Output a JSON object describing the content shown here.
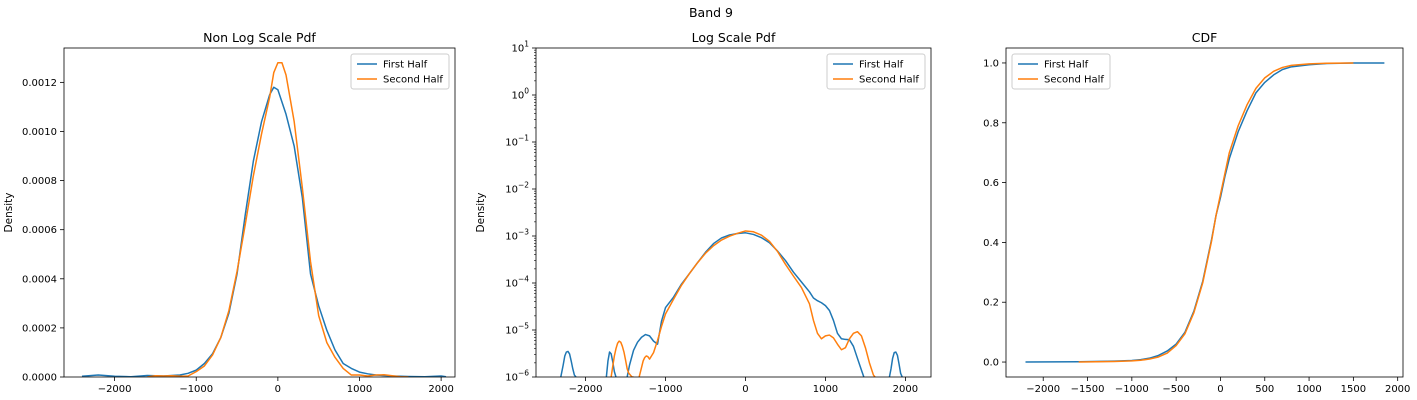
{
  "suptitle": "Band 9",
  "colors": {
    "first": "#1f77b4",
    "second": "#ff7f0e"
  },
  "legend": [
    "First Half",
    "Second Half"
  ],
  "chart_data": [
    {
      "type": "line",
      "title": "Non Log Scale Pdf",
      "xlabel": "",
      "ylabel": "Density",
      "xlim": [
        -2620,
        2170
      ],
      "ylim": [
        0,
        0.00134
      ],
      "xticks": [
        -2000,
        -1000,
        0,
        1000,
        2000
      ],
      "xtick_labels": [
        "−2000",
        "−1000",
        "0",
        "1000",
        "2000"
      ],
      "yticks": [
        0,
        0.0002,
        0.0004,
        0.0006,
        0.0008,
        0.001,
        0.0012
      ],
      "ytick_labels": [
        "0.0000",
        "0.0002",
        "0.0004",
        "0.0006",
        "0.0008",
        "0.0010",
        "0.0012"
      ],
      "legend_loc": "upper right",
      "series": [
        {
          "name": "First Half",
          "color": "#1f77b4",
          "x": [
            -2400,
            -2200,
            -2000,
            -1800,
            -1600,
            -1400,
            -1200,
            -1100,
            -1000,
            -900,
            -800,
            -700,
            -600,
            -500,
            -400,
            -300,
            -200,
            -100,
            -50,
            0,
            50,
            100,
            200,
            300,
            400,
            500,
            600,
            700,
            800,
            900,
            1000,
            1100,
            1200,
            1400,
            1600,
            1800,
            2000,
            2060
          ],
          "y": [
            3e-06,
            8e-06,
            3e-06,
            1e-06,
            6e-06,
            4e-06,
            8e-06,
            1.5e-05,
            2.8e-05,
            5.5e-05,
            9.5e-05,
            0.00016,
            0.00026,
            0.00042,
            0.00066,
            0.00088,
            0.00104,
            0.00115,
            0.00118,
            0.00117,
            0.00112,
            0.00107,
            0.00094,
            0.00073,
            0.00042,
            0.00029,
            0.00019,
            0.00011,
            5.5e-05,
            3.5e-05,
            2e-05,
            1.3e-05,
            8e-06,
            4e-06,
            2e-06,
            1e-06,
            4e-06,
            1e-06
          ]
        },
        {
          "name": "Second Half",
          "color": "#ff7f0e",
          "x": [
            -1600,
            -1500,
            -1400,
            -1300,
            -1200,
            -1100,
            -1000,
            -900,
            -800,
            -700,
            -600,
            -500,
            -400,
            -300,
            -200,
            -100,
            -50,
            0,
            50,
            100,
            200,
            300,
            400,
            500,
            600,
            700,
            800,
            900,
            1000,
            1100,
            1200,
            1300,
            1400,
            1500,
            1600
          ],
          "y": [
            0,
            5e-06,
            4e-06,
            5e-06,
            3e-06,
            4e-06,
            2.2e-05,
            4.5e-05,
            9e-05,
            0.00016,
            0.00027,
            0.00043,
            0.00062,
            0.00082,
            0.00099,
            0.00114,
            0.00124,
            0.00128,
            0.00128,
            0.00123,
            0.00104,
            0.00077,
            0.00047,
            0.00025,
            0.00014,
            8e-05,
            3.5e-05,
            8e-06,
            8e-06,
            4e-06,
            8e-06,
            9e-06,
            5e-06,
            1e-06,
            0
          ]
        }
      ]
    },
    {
      "type": "line",
      "title": "Log Scale Pdf",
      "xlabel": "",
      "ylabel": "Density",
      "yscale": "log",
      "xlim": [
        -2620,
        2320
      ],
      "ylim": [
        1e-06,
        10
      ],
      "xticks": [
        -2000,
        -1000,
        0,
        1000,
        2000
      ],
      "xtick_labels": [
        "−2000",
        "−1000",
        "0",
        "1000",
        "2000"
      ],
      "yticks": [
        1e-06,
        1e-05,
        0.0001,
        0.001,
        0.01,
        0.1,
        1,
        10
      ],
      "ytick_labels": [
        [
          "10",
          "−6"
        ],
        [
          "10",
          "−5"
        ],
        [
          "10",
          "−4"
        ],
        [
          "10",
          "−3"
        ],
        [
          "10",
          "−2"
        ],
        [
          "10",
          "−1"
        ],
        [
          "10",
          "0"
        ],
        [
          "10",
          "1"
        ]
      ],
      "legend_loc": "upper right",
      "series": [
        {
          "name": "First Half",
          "color": "#1f77b4",
          "segments": [
            {
              "x": [
                -2310,
                -2280,
                -2260,
                -2240,
                -2220,
                -2200,
                -2180,
                -2160,
                -2140,
                -2120
              ],
              "y": [
                1e-06,
                1.8e-06,
                2.8e-06,
                3.4e-06,
                3.5e-06,
                3.1e-06,
                2.2e-06,
                1.5e-06,
                1.1e-06,
                1e-06
              ]
            },
            {
              "x": [
                -1740,
                -1720,
                -1700,
                -1680,
                -1660,
                -1640,
                -1620
              ],
              "y": [
                1e-06,
                2.2e-06,
                3.4e-06,
                3.1e-06,
                2.1e-06,
                1.3e-06,
                1e-06
              ]
            },
            {
              "x": [
                -1480,
                -1450,
                -1400,
                -1350,
                -1300,
                -1250,
                -1200,
                -1150,
                -1100,
                -1050,
                -1000,
                -900,
                -800,
                -700,
                -600,
                -500,
                -400,
                -300,
                -200,
                -100,
                0,
                100,
                200,
                300,
                400,
                500,
                600,
                700,
                800,
                850,
                900,
                950,
                1000,
                1050,
                1100,
                1150,
                1200,
                1250,
                1300,
                1350,
                1400,
                1450,
                1480
              ],
              "y": [
                1e-06,
                1.8e-06,
                3.7e-06,
                5.5e-06,
                7e-06,
                8e-06,
                7.5e-06,
                5.8e-06,
                5e-06,
                1.55e-05,
                3e-05,
                5e-05,
                9.5e-05,
                0.00016,
                0.00027,
                0.00045,
                0.00069,
                0.00091,
                0.00105,
                0.00113,
                0.00117,
                0.00108,
                0.00092,
                0.00072,
                0.00048,
                0.0003,
                0.00017,
                0.000105,
                6.5e-05,
                4.8e-05,
                4.2e-05,
                3.8e-05,
                3.3e-05,
                2.6e-05,
                1.6e-05,
                8.5e-06,
                6.5e-06,
                6.3e-06,
                6.2e-06,
                4.5e-06,
                2.5e-06,
                1.4e-06,
                1e-06
              ]
            },
            {
              "x": [
                1800,
                1820,
                1840,
                1860,
                1880,
                1900,
                1920,
                1940,
                1960
              ],
              "y": [
                1e-06,
                1.5e-06,
                2.5e-06,
                3.3e-06,
                3.4e-06,
                2.9e-06,
                1.9e-06,
                1.2e-06,
                1e-06
              ]
            }
          ]
        },
        {
          "name": "Second Half",
          "color": "#ff7f0e",
          "segments": [
            {
              "x": [
                -1680,
                -1660,
                -1640,
                -1620,
                -1600,
                -1580,
                -1560,
                -1540,
                -1520,
                -1500,
                -1480,
                -1460,
                -1440,
                -1420,
                -1400
              ],
              "y": [
                1e-06,
                1.7e-06,
                2.8e-06,
                4e-06,
                5.2e-06,
                5.8e-06,
                5.5e-06,
                4.5e-06,
                3.4e-06,
                2.3e-06,
                1.5e-06,
                1.2e-06,
                1.1e-06,
                1e-06,
                1e-06
              ]
            },
            {
              "x": [
                -1330,
                -1300,
                -1280,
                -1260,
                -1240,
                -1220,
                -1200,
                -1150,
                -1100,
                -1050,
                -1000,
                -900,
                -800,
                -700,
                -600,
                -500,
                -400,
                -300,
                -200,
                -100,
                0,
                100,
                200,
                300,
                400,
                500,
                600,
                700,
                800,
                850,
                900,
                950,
                1000,
                1050,
                1100,
                1150,
                1200,
                1250,
                1300,
                1350,
                1400,
                1450,
                1500,
                1550,
                1600,
                1620
              ],
              "y": [
                1e-06,
                1.6e-06,
                2.2e-06,
                2.6e-06,
                2.8e-06,
                2.7e-06,
                2.4e-06,
                3.3e-06,
                6e-06,
                1.2e-05,
                2.2e-05,
                4.5e-05,
                9e-05,
                0.00016,
                0.00027,
                0.00043,
                0.00062,
                0.00082,
                0.00099,
                0.00114,
                0.00128,
                0.00123,
                0.00104,
                0.00077,
                0.00047,
                0.00025,
                0.00014,
                8e-05,
                3.6e-05,
                1.6e-05,
                8.5e-06,
                6.5e-06,
                7.5e-06,
                7.8e-06,
                6.8e-06,
                5e-06,
                3.8e-06,
                4.2e-06,
                6.5e-06,
                8.5e-06,
                9.2e-06,
                7.5e-06,
                4.2e-06,
                2e-06,
                1.1e-06,
                1e-06
              ]
            }
          ]
        }
      ]
    },
    {
      "type": "line",
      "title": "CDF",
      "xlabel": "",
      "ylabel": "",
      "xlim": [
        -2420,
        2060
      ],
      "ylim": [
        -0.05,
        1.05
      ],
      "xticks": [
        -2000,
        -1500,
        -1000,
        -500,
        0,
        500,
        1000,
        1500,
        2000
      ],
      "xtick_labels": [
        "−2000",
        "−1500",
        "−1000",
        "−500",
        "0",
        "500",
        "1000",
        "1500",
        "2000"
      ],
      "yticks": [
        0,
        0.2,
        0.4,
        0.6,
        0.8,
        1.0
      ],
      "ytick_labels": [
        "0.0",
        "0.2",
        "0.4",
        "0.6",
        "0.8",
        "1.0"
      ],
      "legend_loc": "upper left",
      "series": [
        {
          "name": "First Half",
          "color": "#1f77b4",
          "x": [
            -2200,
            -1600,
            -1200,
            -1000,
            -900,
            -800,
            -700,
            -600,
            -500,
            -400,
            -300,
            -200,
            -100,
            -50,
            0,
            50,
            100,
            200,
            300,
            400,
            500,
            600,
            700,
            800,
            1000,
            1200,
            1500,
            1850
          ],
          "y": [
            0,
            0.001,
            0.003,
            0.005,
            0.008,
            0.013,
            0.022,
            0.037,
            0.06,
            0.1,
            0.17,
            0.27,
            0.41,
            0.49,
            0.55,
            0.62,
            0.68,
            0.77,
            0.84,
            0.9,
            0.935,
            0.96,
            0.978,
            0.987,
            0.994,
            0.998,
            1.0,
            1.0
          ]
        },
        {
          "name": "Second Half",
          "color": "#ff7f0e",
          "x": [
            -1600,
            -1400,
            -1200,
            -1000,
            -900,
            -800,
            -700,
            -600,
            -500,
            -400,
            -300,
            -200,
            -100,
            -50,
            0,
            50,
            100,
            200,
            300,
            400,
            500,
            600,
            700,
            800,
            1000,
            1200,
            1500
          ],
          "y": [
            0,
            0.001,
            0.002,
            0.004,
            0.006,
            0.01,
            0.017,
            0.03,
            0.055,
            0.095,
            0.165,
            0.265,
            0.405,
            0.49,
            0.56,
            0.63,
            0.7,
            0.79,
            0.86,
            0.915,
            0.95,
            0.972,
            0.985,
            0.992,
            0.997,
            0.999,
            1.0
          ]
        }
      ]
    }
  ]
}
